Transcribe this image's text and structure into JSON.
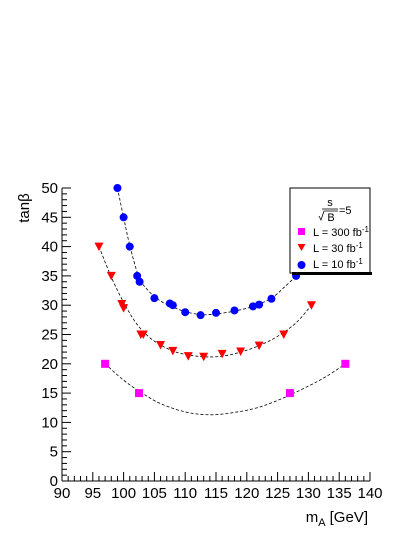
{
  "chart_data": {
    "type": "scatter",
    "xlabel": "m",
    "xlabel_sub": "A",
    "xlabel_unit": "[GeV]",
    "ylabel": "tanβ",
    "xlim": [
      90,
      140
    ],
    "ylim": [
      0,
      50
    ],
    "x_ticks": [
      90,
      95,
      100,
      105,
      110,
      115,
      120,
      125,
      130,
      135,
      140
    ],
    "y_ticks": [
      0,
      5,
      10,
      15,
      20,
      25,
      30,
      35,
      40,
      45,
      50
    ],
    "grid": false,
    "legend": {
      "placement": "top-right",
      "title_num": "s",
      "title_den": "B",
      "title_suffix": "=5",
      "entries_text": [
        {
          "prefix": "L = 300 fb",
          "sup": "-1"
        },
        {
          "prefix": "L = 30 fb",
          "sup": "-1"
        },
        {
          "prefix": "L = 10 fb",
          "sup": "-1"
        }
      ]
    },
    "series": [
      {
        "marker": "square",
        "color": "#ff00ff",
        "points": [
          [
            97,
            20
          ],
          [
            102.5,
            15
          ],
          [
            127,
            15
          ],
          [
            136,
            20
          ]
        ],
        "curve": [
          [
            97,
            20
          ],
          [
            100,
            17.2
          ],
          [
            103,
            15.0
          ],
          [
            106,
            13.2
          ],
          [
            110,
            11.8
          ],
          [
            114,
            11.3
          ],
          [
            118,
            11.7
          ],
          [
            122,
            12.6
          ],
          [
            126,
            14.2
          ],
          [
            130,
            16.2
          ],
          [
            133,
            17.9
          ],
          [
            136,
            20
          ]
        ]
      },
      {
        "marker": "triangle-down",
        "color": "#ff0000",
        "points": [
          [
            96,
            40
          ],
          [
            98,
            35
          ],
          [
            99.7,
            30.2
          ],
          [
            100,
            29.5
          ],
          [
            102.8,
            25
          ],
          [
            103.2,
            25
          ],
          [
            106,
            23.2
          ],
          [
            108,
            22.2
          ],
          [
            110.5,
            21.3
          ],
          [
            113,
            21.2
          ],
          [
            116,
            21.7
          ],
          [
            119,
            22.1
          ],
          [
            122,
            23.1
          ],
          [
            126,
            25
          ],
          [
            130.5,
            30
          ]
        ],
        "curve": [
          [
            96,
            40
          ],
          [
            98,
            34.8
          ],
          [
            100,
            30.5
          ],
          [
            102,
            27
          ],
          [
            104,
            24.7
          ],
          [
            106,
            23.2
          ],
          [
            108,
            22.2
          ],
          [
            110,
            21.6
          ],
          [
            113,
            21.2
          ],
          [
            116,
            21.3
          ],
          [
            119,
            22.0
          ],
          [
            122,
            23.1
          ],
          [
            125,
            24.7
          ],
          [
            128,
            27.0
          ],
          [
            130.5,
            30
          ]
        ]
      },
      {
        "marker": "circle",
        "color": "#0000ff",
        "points": [
          [
            99,
            50
          ],
          [
            100,
            45
          ],
          [
            101,
            40
          ],
          [
            102.2,
            35
          ],
          [
            102.6,
            34
          ],
          [
            105,
            31.2
          ],
          [
            107.5,
            30.3
          ],
          [
            108,
            30
          ],
          [
            110,
            28.8
          ],
          [
            112.5,
            28.3
          ],
          [
            115,
            28.7
          ],
          [
            118,
            29.1
          ],
          [
            121,
            29.8
          ],
          [
            122,
            30.1
          ],
          [
            124,
            31.1
          ],
          [
            128,
            35
          ]
        ],
        "curve": [
          [
            99,
            50
          ],
          [
            100,
            45
          ],
          [
            101,
            40.2
          ],
          [
            102.5,
            34.8
          ],
          [
            104,
            32.5
          ],
          [
            106,
            30.7
          ],
          [
            108,
            29.7
          ],
          [
            110,
            28.9
          ],
          [
            112.5,
            28.4
          ],
          [
            115,
            28.5
          ],
          [
            118,
            29.0
          ],
          [
            121,
            29.8
          ],
          [
            124,
            31.2
          ],
          [
            126,
            33
          ],
          [
            128,
            35
          ],
          [
            129,
            36.5
          ]
        ]
      }
    ]
  }
}
